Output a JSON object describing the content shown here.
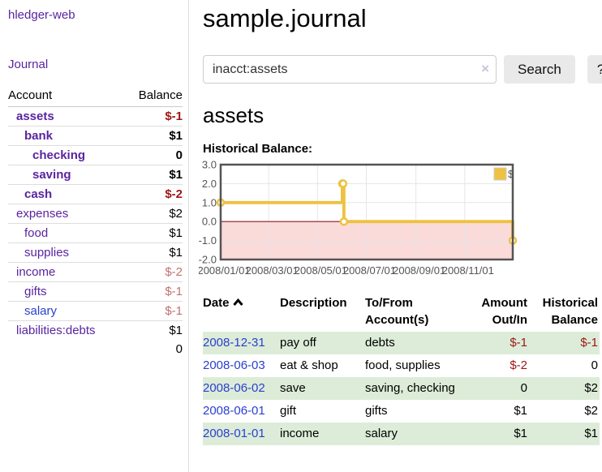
{
  "app": {
    "title": "hledger-web"
  },
  "sidebar": {
    "journal_link": "Journal",
    "accounts_table": {
      "headers": {
        "account": "Account",
        "balance": "Balance"
      },
      "rows": [
        {
          "account": "assets",
          "indent": 1,
          "bold": true,
          "link_color": "purple",
          "balance": "$-1",
          "balance_style": "negstrong"
        },
        {
          "account": "bank",
          "indent": 2,
          "bold": true,
          "link_color": "purple",
          "balance": "$1",
          "balance_style": "strong"
        },
        {
          "account": "checking",
          "indent": 3,
          "bold": true,
          "link_color": "purple",
          "balance": "0",
          "balance_style": "strong"
        },
        {
          "account": "saving",
          "indent": 3,
          "bold": true,
          "link_color": "purple",
          "balance": "$1",
          "balance_style": "strong"
        },
        {
          "account": "cash",
          "indent": 2,
          "bold": true,
          "link_color": "purple",
          "balance": "$-2",
          "balance_style": "negstrong"
        },
        {
          "account": "expenses",
          "indent": 1,
          "bold": false,
          "link_color": "purple",
          "balance": "$2",
          "balance_style": "plain"
        },
        {
          "account": "food",
          "indent": 2,
          "bold": false,
          "link_color": "purple",
          "balance": "$1",
          "balance_style": "plain"
        },
        {
          "account": "supplies",
          "indent": 2,
          "bold": false,
          "link_color": "purple",
          "balance": "$1",
          "balance_style": "plain"
        },
        {
          "account": "income",
          "indent": 1,
          "bold": false,
          "link_color": "purple",
          "balance": "$-2",
          "balance_style": "negsoft"
        },
        {
          "account": "gifts",
          "indent": 2,
          "bold": false,
          "link_color": "purple",
          "balance": "$-1",
          "balance_style": "negsoft"
        },
        {
          "account": "salary",
          "indent": 2,
          "bold": false,
          "link_color": "blue",
          "balance": "$-1",
          "balance_style": "negsoft"
        },
        {
          "account": "liabilities:debts",
          "indent": 1,
          "bold": false,
          "link_color": "purple",
          "balance": "$1",
          "balance_style": "plain"
        }
      ],
      "total": "0"
    }
  },
  "header": {
    "title": "sample.journal"
  },
  "search": {
    "value": "inacct:assets",
    "clear_icon": "×",
    "button_label": "Search",
    "help_label": "?"
  },
  "account_page": {
    "title": "assets",
    "chart_label": "Historical Balance:"
  },
  "chart_data": {
    "type": "line",
    "title": "Historical Balance",
    "legend": [
      {
        "label": "$",
        "color": "#edc240"
      }
    ],
    "legend_position": "top-right",
    "grid": true,
    "x_ticks": [
      "2008/01/01",
      "2008/03/01",
      "2008/05/01",
      "2008/07/01",
      "2008/09/01",
      "2008/11/01"
    ],
    "x_range": [
      "2008-01-01",
      "2008-12-31"
    ],
    "y_ticks": [
      "3.0",
      "2.0",
      "1.0",
      "0.0",
      "-1.0",
      "-2.0"
    ],
    "ylim": [
      -2,
      3
    ],
    "series": [
      {
        "name": "$",
        "color": "#edc240",
        "steps": true,
        "points": [
          [
            "2008-01-01",
            1
          ],
          [
            "2008-06-01",
            2
          ],
          [
            "2008-06-02",
            2
          ],
          [
            "2008-06-03",
            0
          ],
          [
            "2008-12-31",
            -1
          ]
        ]
      }
    ],
    "negative_fill": "#fbdada",
    "zero_line_color": "#8e1b1b",
    "border_color": "#545454",
    "gridline_color": "#e6e6e6",
    "tick_text_color": "#545454"
  },
  "register": {
    "headers": {
      "date": "Date",
      "description": "Description",
      "accounts": "To/From Account(s)",
      "amount": "Amount Out/In",
      "balance": "Historical Balance"
    },
    "sort": {
      "column": "date",
      "direction": "ascending"
    },
    "rows": [
      {
        "date": "2008-12-31",
        "description": "pay off",
        "accounts": "debts",
        "amount": "$-1",
        "amount_neg": true,
        "balance": "$-1",
        "balance_neg": true,
        "green": true
      },
      {
        "date": "2008-06-03",
        "description": "eat & shop",
        "accounts": "food, supplies",
        "amount": "$-2",
        "amount_neg": true,
        "balance": "0",
        "balance_neg": false,
        "green": false
      },
      {
        "date": "2008-06-02",
        "description": "save",
        "accounts": "saving, checking",
        "amount": "0",
        "amount_neg": false,
        "balance": "$2",
        "balance_neg": false,
        "green": true
      },
      {
        "date": "2008-06-01",
        "description": "gift",
        "accounts": "gifts",
        "amount": "$1",
        "amount_neg": false,
        "balance": "$2",
        "balance_neg": false,
        "green": false
      },
      {
        "date": "2008-01-01",
        "description": "income",
        "accounts": "salary",
        "amount": "$1",
        "amount_neg": false,
        "balance": "$1",
        "balance_neg": false,
        "green": true
      }
    ]
  },
  "colors": {
    "link_purple": "#5a24a0",
    "link_blue": "#2a3fd0",
    "negative_strong": "#9d1616",
    "negative_soft": "#c17272",
    "row_green": "#dcecd8",
    "series_gold": "#edc240",
    "divider": "#dddddd"
  }
}
